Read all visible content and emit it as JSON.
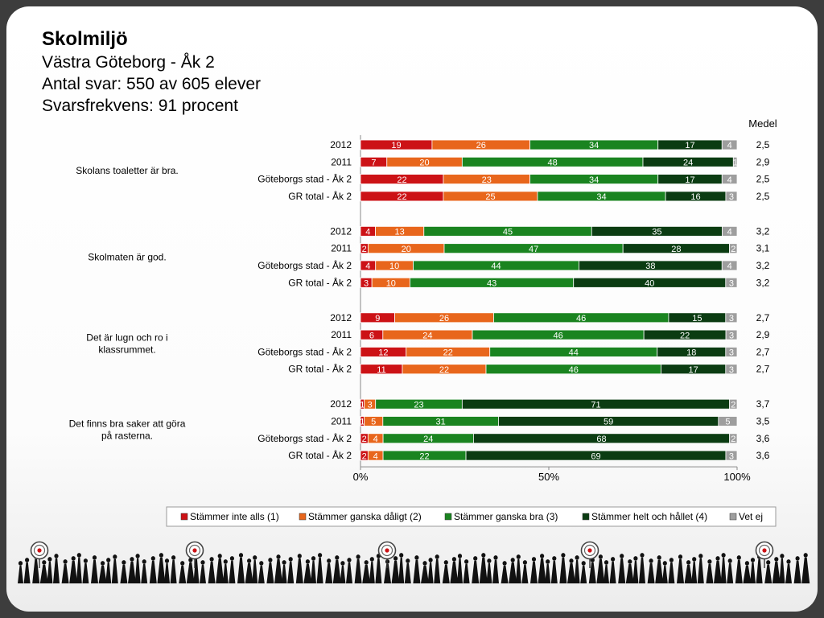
{
  "header": {
    "title": "Skolmiljö",
    "subtitle": "Västra Göteborg - Åk 2",
    "responses": "Antal svar: 550 av 605 elever",
    "frequency": "Svarsfrekvens: 91 procent"
  },
  "chart_data": {
    "type": "bar",
    "stacked": true,
    "orientation": "horizontal",
    "mean_header": "Medel",
    "x_ticks": [
      "0%",
      "50%",
      "100%"
    ],
    "xlim": [
      0,
      100
    ],
    "legend_position": "bottom",
    "series": [
      {
        "name": "Stämmer inte alls (1)",
        "color": "#cc1216"
      },
      {
        "name": "Stämmer ganska dåligt (2)",
        "color": "#e8661c"
      },
      {
        "name": "Stämmer ganska bra (3)",
        "color": "#1a8420"
      },
      {
        "name": "Stämmer helt och hållet (4)",
        "color": "#0b3c12"
      },
      {
        "name": "Vet ej",
        "color": "#9e9e9e"
      }
    ],
    "groups": [
      {
        "question": "Skolans toaletter är bra.",
        "rows": [
          {
            "label": "2012",
            "values": [
              19,
              26,
              34,
              17,
              4
            ],
            "mean": "2,5"
          },
          {
            "label": "2011",
            "values": [
              7,
              20,
              48,
              24,
              1
            ],
            "mean": "2,9"
          },
          {
            "label": "Göteborgs stad - Åk 2",
            "values": [
              22,
              23,
              34,
              17,
              4
            ],
            "mean": "2,5"
          },
          {
            "label": "GR total - Åk 2",
            "values": [
              22,
              25,
              34,
              16,
              3
            ],
            "mean": "2,5"
          }
        ]
      },
      {
        "question": "Skolmaten är god.",
        "rows": [
          {
            "label": "2012",
            "values": [
              4,
              13,
              45,
              35,
              4
            ],
            "mean": "3,2"
          },
          {
            "label": "2011",
            "values": [
              2,
              20,
              47,
              28,
              2
            ],
            "mean": "3,1"
          },
          {
            "label": "Göteborgs stad - Åk 2",
            "values": [
              4,
              10,
              44,
              38,
              4
            ],
            "mean": "3,2"
          },
          {
            "label": "GR total - Åk 2",
            "values": [
              3,
              10,
              43,
              40,
              3
            ],
            "mean": "3,2"
          }
        ]
      },
      {
        "question": "Det är lugn och ro i klassrummet.",
        "rows": [
          {
            "label": "2012",
            "values": [
              9,
              26,
              46,
              15,
              3
            ],
            "mean": "2,7"
          },
          {
            "label": "2011",
            "values": [
              6,
              24,
              46,
              22,
              3
            ],
            "mean": "2,9"
          },
          {
            "label": "Göteborgs stad - Åk 2",
            "values": [
              12,
              22,
              44,
              18,
              3
            ],
            "mean": "2,7"
          },
          {
            "label": "GR total - Åk 2",
            "values": [
              11,
              22,
              46,
              17,
              3
            ],
            "mean": "2,7"
          }
        ]
      },
      {
        "question": "Det finns bra saker att göra på rasterna.",
        "rows": [
          {
            "label": "2012",
            "values": [
              1,
              3,
              23,
              71,
              2
            ],
            "mean": "3,7"
          },
          {
            "label": "2011",
            "values": [
              1,
              5,
              31,
              59,
              5
            ],
            "mean": "3,5"
          },
          {
            "label": "Göteborgs stad - Åk 2",
            "values": [
              2,
              4,
              24,
              68,
              2
            ],
            "mean": "3,6"
          },
          {
            "label": "GR total - Åk 2",
            "values": [
              2,
              4,
              22,
              69,
              3
            ],
            "mean": "3,6"
          }
        ]
      }
    ]
  }
}
